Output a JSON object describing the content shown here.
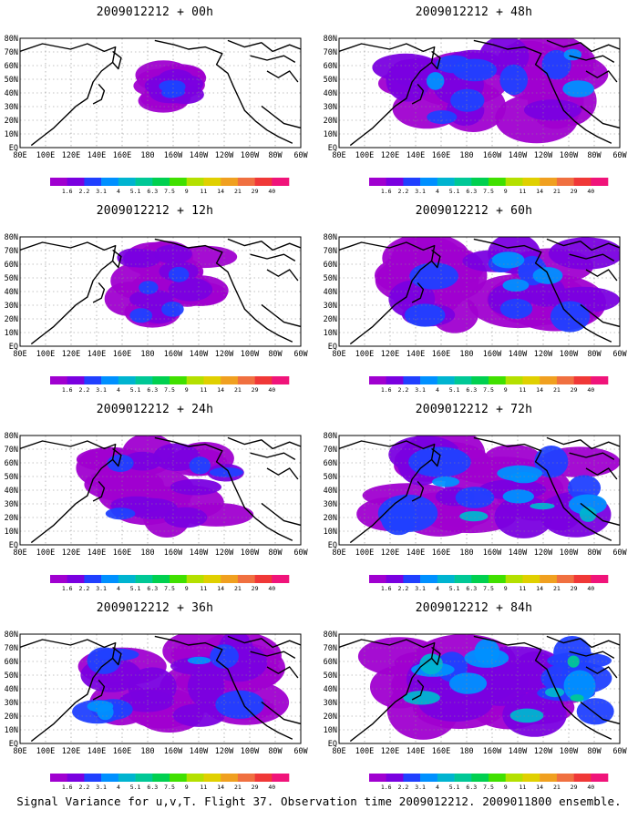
{
  "caption": "Signal Variance for u,v,T. Flight 37. Observation time 2009012212. 2009011800 ensemble.",
  "lon_ticks": [
    "80E",
    "100E",
    "120E",
    "140E",
    "160E",
    "180",
    "160W",
    "140W",
    "120W",
    "100W",
    "80W",
    "60W"
  ],
  "lat_ticks": [
    "80N",
    "70N",
    "60N",
    "50N",
    "40N",
    "30N",
    "20N",
    "10N",
    "EQ"
  ],
  "colorbar": {
    "levels": [
      "1.6",
      "2.2",
      "3.1",
      "4",
      "5.1",
      "6.3",
      "7.5",
      "9",
      "11",
      "14",
      "21",
      "29",
      "40"
    ],
    "colors": [
      "#a000d0",
      "#7a00e0",
      "#2040ff",
      "#0090ff",
      "#00b4d0",
      "#00c896",
      "#00d050",
      "#40e000",
      "#b4e000",
      "#e0d000",
      "#f0a020",
      "#f07040",
      "#f03838",
      "#f0147a"
    ]
  },
  "panels": [
    {
      "id": "p00",
      "title": "2009012212 + 00h",
      "intensity": 0.35,
      "coverage": 0.18
    },
    {
      "id": "p48",
      "title": "2009012212 + 48h",
      "intensity": 0.45,
      "coverage": 0.8
    },
    {
      "id": "p12",
      "title": "2009012212 + 12h",
      "intensity": 0.35,
      "coverage": 0.35
    },
    {
      "id": "p60",
      "title": "2009012212 + 60h",
      "intensity": 0.55,
      "coverage": 0.85
    },
    {
      "id": "p24",
      "title": "2009012212 + 24h",
      "intensity": 0.4,
      "coverage": 0.55
    },
    {
      "id": "p72",
      "title": "2009012212 + 72h",
      "intensity": 0.6,
      "coverage": 0.88
    },
    {
      "id": "p36",
      "title": "2009012212 + 36h",
      "intensity": 0.45,
      "coverage": 0.7
    },
    {
      "id": "p84",
      "title": "2009012212 + 84h",
      "intensity": 0.7,
      "coverage": 0.92
    }
  ]
}
